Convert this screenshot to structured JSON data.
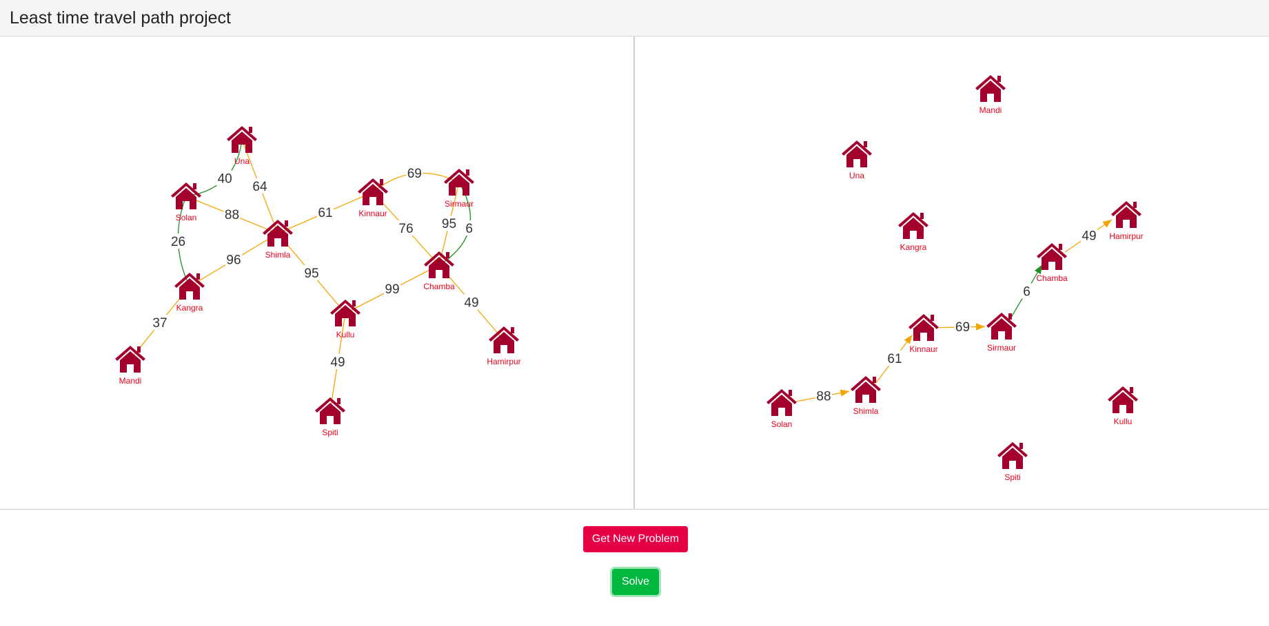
{
  "header": {
    "title": "Least time travel path project"
  },
  "colors": {
    "node": "#a3002d",
    "label": "#e8001c",
    "edge_default": "#f5a500",
    "edge_fastest": "#1f8f1f",
    "get_new_problem_button": "#e60045",
    "solve_button": "#00b83d"
  },
  "icons": {
    "node_icon": "house-icon"
  },
  "problem_graph": {
    "nodes": [
      {
        "id": "Una",
        "label": "Una"
      },
      {
        "id": "Solan",
        "label": "Solan"
      },
      {
        "id": "Shimla",
        "label": "Shimla"
      },
      {
        "id": "Kinnaur",
        "label": "Kinnaur"
      },
      {
        "id": "Sirmaur",
        "label": "Sirmaur"
      },
      {
        "id": "Chamba",
        "label": "Chamba"
      },
      {
        "id": "Kangra",
        "label": "Kangra"
      },
      {
        "id": "Kullu",
        "label": "Kullu"
      },
      {
        "id": "Mandi",
        "label": "Mandi"
      },
      {
        "id": "Hamirpur",
        "label": "Hamirpur"
      },
      {
        "id": "Spiti",
        "label": "Spiti"
      }
    ],
    "edges": [
      {
        "from": "Una",
        "to": "Solan",
        "weight": "40",
        "color": "edge_fastest"
      },
      {
        "from": "Una",
        "to": "Shimla",
        "weight": "64",
        "color": "edge_default"
      },
      {
        "from": "Solan",
        "to": "Shimla",
        "weight": "88",
        "color": "edge_default"
      },
      {
        "from": "Solan",
        "to": "Kangra",
        "weight": "26",
        "color": "edge_fastest"
      },
      {
        "from": "Shimla",
        "to": "Kangra",
        "weight": "96",
        "color": "edge_default"
      },
      {
        "from": "Shimla",
        "to": "Kinnaur",
        "weight": "61",
        "color": "edge_default"
      },
      {
        "from": "Shimla",
        "to": "Kullu",
        "weight": "95",
        "color": "edge_default"
      },
      {
        "from": "Kinnaur",
        "to": "Sirmaur",
        "weight": "69",
        "color": "edge_default"
      },
      {
        "from": "Kinnaur",
        "to": "Chamba",
        "weight": "76",
        "color": "edge_default"
      },
      {
        "from": "Sirmaur",
        "to": "Chamba",
        "weight": "95",
        "color": "edge_default"
      },
      {
        "from": "Sirmaur",
        "to": "Chamba",
        "weight": "6",
        "color": "edge_fastest"
      },
      {
        "from": "Chamba",
        "to": "Kullu",
        "weight": "99",
        "color": "edge_default"
      },
      {
        "from": "Chamba",
        "to": "Hamirpur",
        "weight": "49",
        "color": "edge_default"
      },
      {
        "from": "Kangra",
        "to": "Mandi",
        "weight": "37",
        "color": "edge_default"
      },
      {
        "from": "Kullu",
        "to": "Spiti",
        "weight": "49",
        "color": "edge_default"
      }
    ]
  },
  "solution_graph": {
    "nodes": [
      {
        "id": "Mandi",
        "label": "Mandi"
      },
      {
        "id": "Una",
        "label": "Una"
      },
      {
        "id": "Kangra",
        "label": "Kangra"
      },
      {
        "id": "Hamirpur",
        "label": "Hamirpur"
      },
      {
        "id": "Chamba",
        "label": "Chamba"
      },
      {
        "id": "Kinnaur",
        "label": "Kinnaur"
      },
      {
        "id": "Sirmaur",
        "label": "Sirmaur"
      },
      {
        "id": "Solan",
        "label": "Solan"
      },
      {
        "id": "Shimla",
        "label": "Shimla"
      },
      {
        "id": "Kullu",
        "label": "Kullu"
      },
      {
        "id": "Spiti",
        "label": "Spiti"
      }
    ],
    "path": [
      {
        "from": "Solan",
        "to": "Shimla",
        "weight": "88",
        "color": "edge_default"
      },
      {
        "from": "Shimla",
        "to": "Kinnaur",
        "weight": "61",
        "color": "edge_default"
      },
      {
        "from": "Kinnaur",
        "to": "Sirmaur",
        "weight": "69",
        "color": "edge_default"
      },
      {
        "from": "Sirmaur",
        "to": "Chamba",
        "weight": "6",
        "color": "edge_fastest"
      },
      {
        "from": "Chamba",
        "to": "Hamirpur",
        "weight": "49",
        "color": "edge_default"
      }
    ]
  },
  "buttons": {
    "get_new_problem": "Get New Problem",
    "solve": "Solve"
  }
}
